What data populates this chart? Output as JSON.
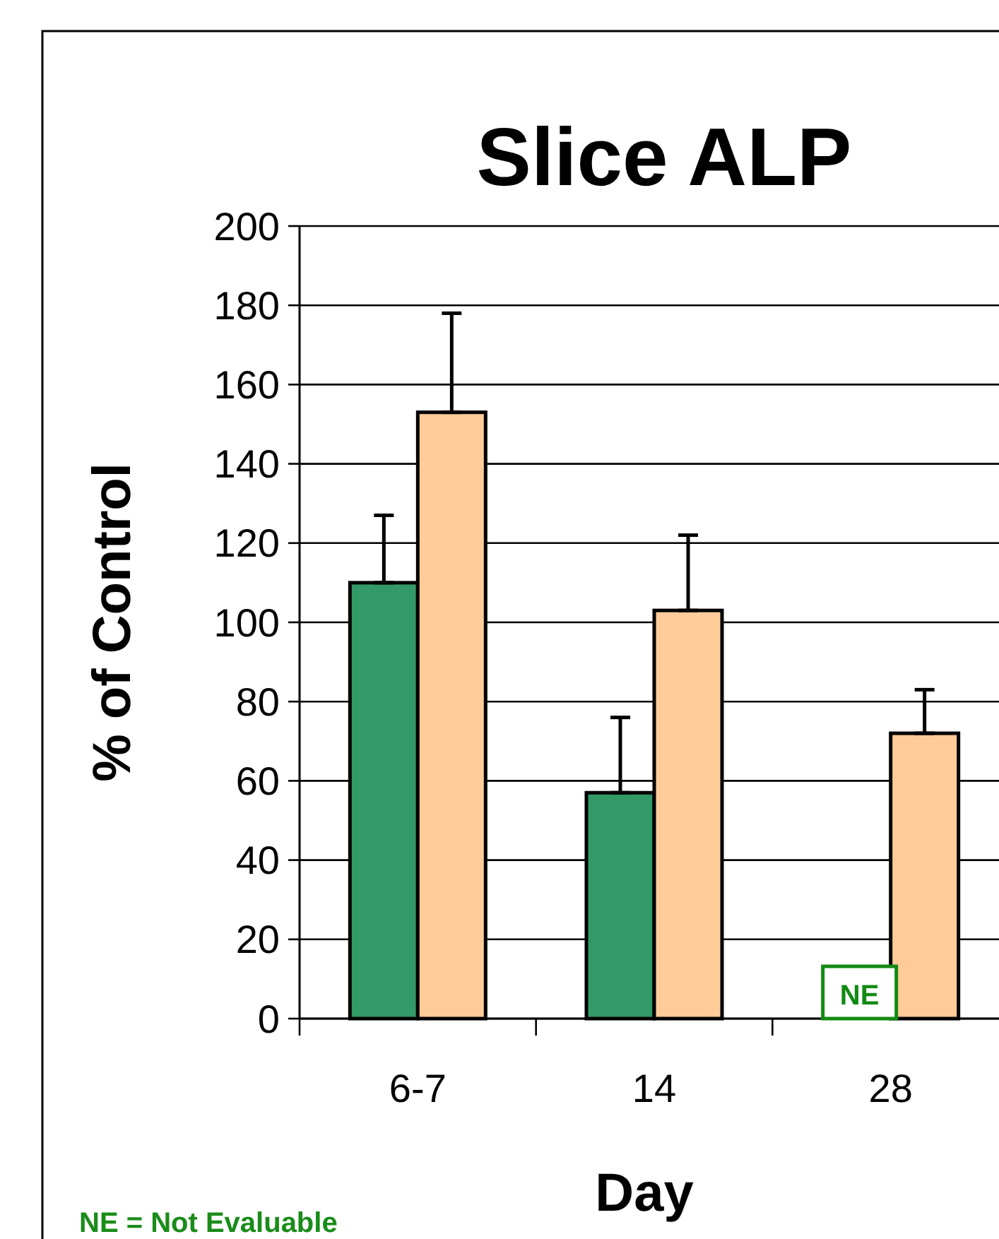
{
  "chart_data": {
    "type": "bar",
    "title": "Slice ALP",
    "xlabel": "Day",
    "ylabel": "% of Control",
    "categories": [
      "6-7",
      "14",
      "28"
    ],
    "series": [
      {
        "color": "#339966",
        "values": [
          110,
          57,
          null
        ],
        "errors": [
          [
            110,
            127
          ],
          [
            57,
            76
          ],
          null
        ]
      },
      {
        "color": "#ffcc99",
        "values": [
          153,
          103,
          72
        ],
        "errors": [
          [
            153,
            178
          ],
          [
            103,
            122
          ],
          [
            72,
            83
          ]
        ]
      }
    ],
    "ylim": [
      0,
      200
    ],
    "yticks": [
      0,
      20,
      40,
      60,
      80,
      100,
      120,
      140,
      160,
      180,
      200
    ],
    "grid": "y",
    "annotations": [
      {
        "text": "NE",
        "x": "28",
        "y": 0
      },
      "NE = Not Evaluable"
    ]
  }
}
